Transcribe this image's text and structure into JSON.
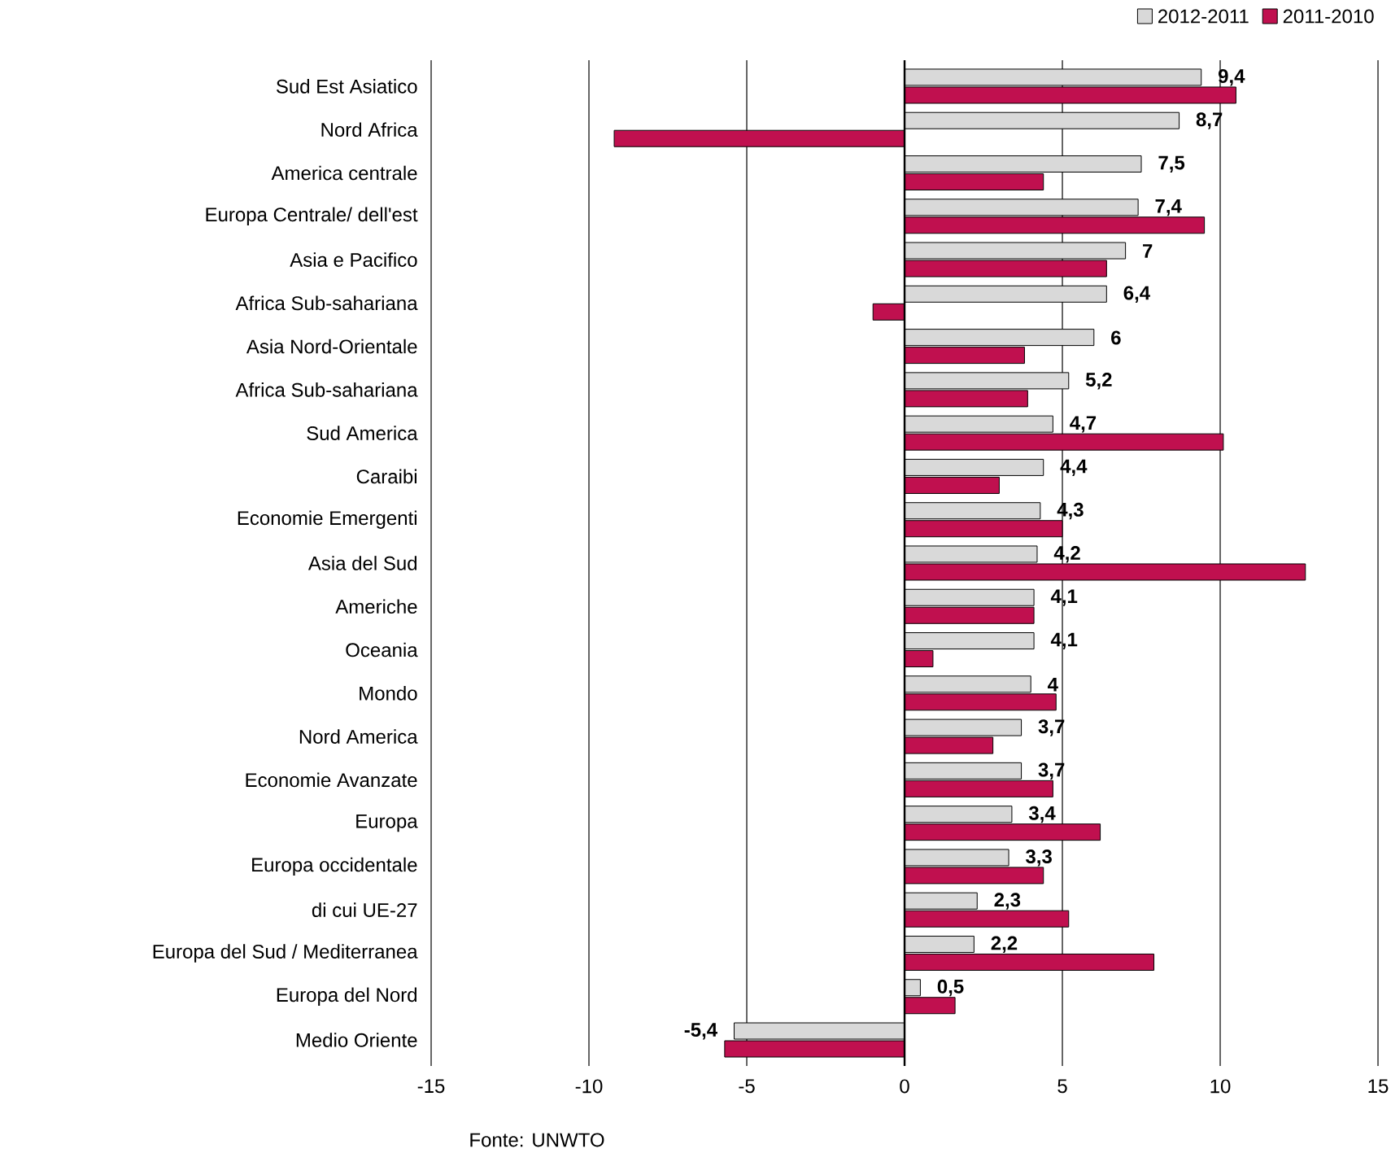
{
  "chart_data": {
    "type": "bar",
    "orientation": "horizontal",
    "categories": [
      "Sud Est Asiatico",
      "Nord Africa",
      "America centrale",
      "Europa Centrale/ dell'est",
      "Asia e Pacifico",
      "Africa Sub-sahariana",
      "Asia Nord-Orientale",
      "Africa Sub-sahariana",
      "Sud America",
      "Caraibi",
      "Economie Emergenti",
      "Asia del Sud",
      "Americhe",
      "Oceania",
      "Mondo",
      "Nord America",
      "Economie Avanzate",
      "Europa",
      "Europa occidentale",
      "di cui UE-27",
      "Europa del Sud / Mediterranea",
      "Europa del Nord",
      "Medio Oriente"
    ],
    "series": [
      {
        "name": "2012-2011",
        "color": "#d9d9d9",
        "values": [
          9.4,
          8.7,
          7.5,
          7.4,
          7,
          6.4,
          6,
          5.2,
          4.7,
          4.4,
          4.3,
          4.2,
          4.1,
          4.1,
          4,
          3.7,
          3.7,
          3.4,
          3.3,
          2.3,
          2.2,
          0.5,
          -5.4
        ],
        "value_labels": [
          "9,4",
          "8,7",
          "7,5",
          "7,4",
          "7",
          "6,4",
          "6",
          "5,2",
          "4,7",
          "4,4",
          "4,3",
          "4,2",
          "4,1",
          "4,1",
          "4",
          "3,7",
          "3,7",
          "3,4",
          "3,3",
          "2,3",
          "2,2",
          "0,5",
          "-5,4"
        ]
      },
      {
        "name": "2011-2010",
        "color": "#c0104f",
        "values": [
          10.5,
          -9.2,
          4.4,
          9.5,
          6.4,
          -1.0,
          3.8,
          3.9,
          10.1,
          3.0,
          5.0,
          12.7,
          4.1,
          0.9,
          4.8,
          2.8,
          4.7,
          6.2,
          4.4,
          5.2,
          7.9,
          1.6,
          -5.7
        ]
      }
    ],
    "xlim": [
      -15,
      15
    ],
    "xticks": [
      -15,
      -10,
      -5,
      0,
      5,
      10,
      15
    ],
    "grid": "x",
    "legend": "top right",
    "annotations": [
      "Fonte: UNWTO"
    ]
  }
}
